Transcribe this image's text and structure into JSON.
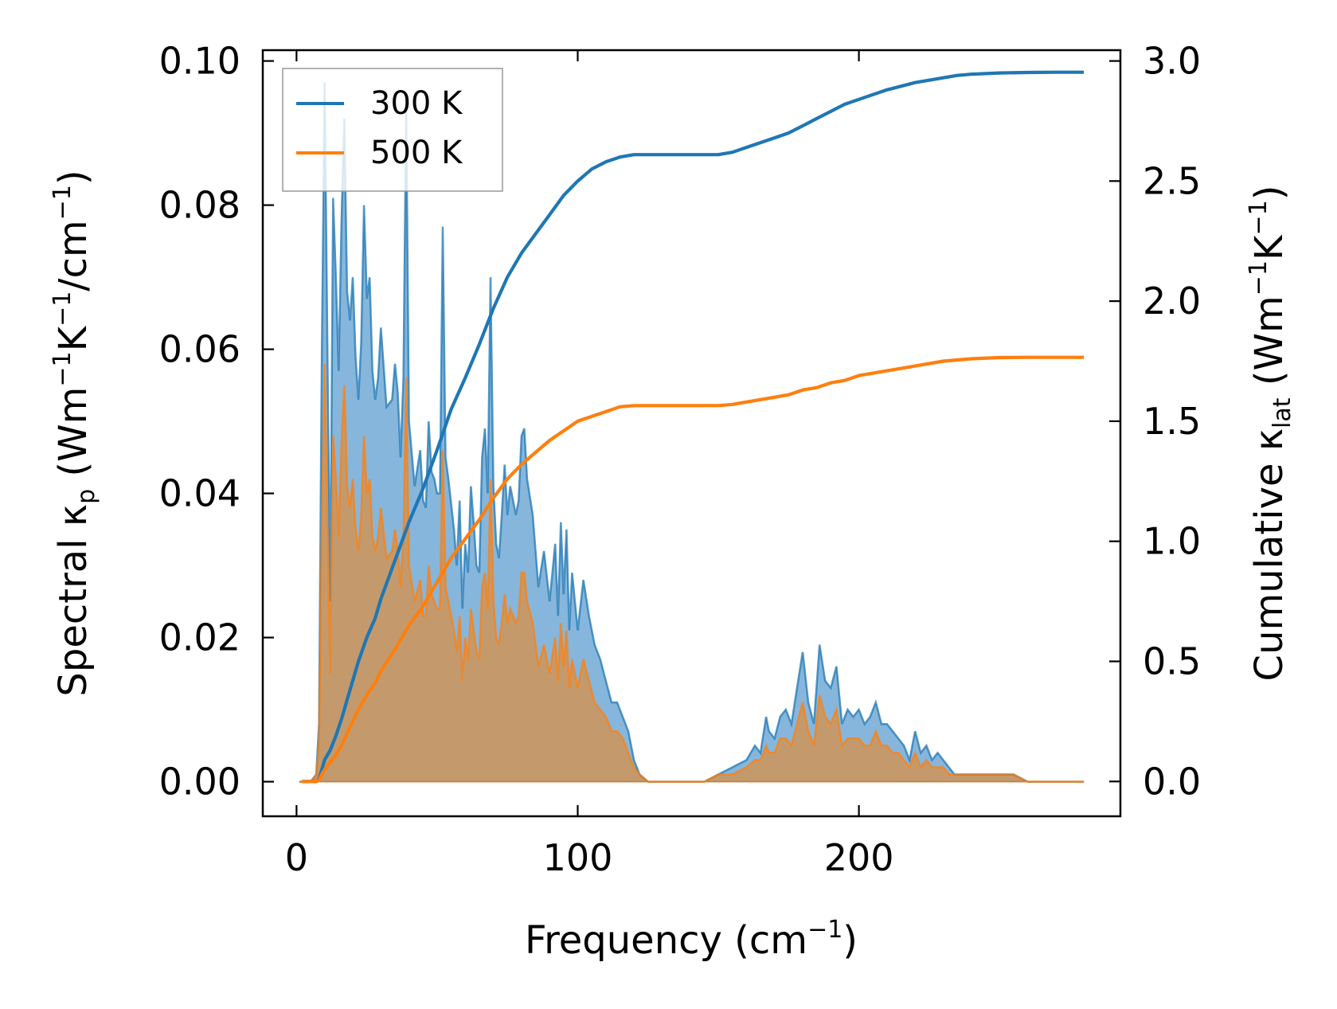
{
  "chart_data": {
    "type": "line",
    "title": "",
    "xlabel": "Frequency (cm⁻¹)",
    "xlabel_main": "Frequency (cm",
    "xlabel_sup": "−1",
    "xlabel_end": ")",
    "ylabel_left_parts": [
      "Spectral κ",
      "p",
      " (Wm",
      "−1",
      "K",
      "−1",
      "/cm",
      "−1",
      ")"
    ],
    "ylabel_right_parts": [
      "Cumulative κ",
      "lat",
      " (Wm",
      "−1",
      "K",
      "−1",
      ")"
    ],
    "xlim": [
      -12,
      293
    ],
    "ylim_left": [
      -0.0048,
      0.1015
    ],
    "ylim_right": [
      -0.145,
      3.045
    ],
    "xticks": [
      0,
      100,
      200
    ],
    "xtick_labels": [
      "0",
      "100",
      "200"
    ],
    "yticks_left": [
      0.0,
      0.02,
      0.04,
      0.06,
      0.08,
      0.1
    ],
    "ytick_labels_left": [
      "0.00",
      "0.02",
      "0.04",
      "0.06",
      "0.08",
      "0.10"
    ],
    "yticks_right": [
      0.0,
      0.5,
      1.0,
      1.5,
      2.0,
      2.5,
      3.0
    ],
    "ytick_labels_right": [
      "0.0",
      "0.5",
      "1.0",
      "1.5",
      "2.0",
      "2.5",
      "3.0"
    ],
    "legend_position": "top-left",
    "colors": {
      "300K": "#1f77b4",
      "500K": "#ff7f0e",
      "fill_300K": "#7fb2d9",
      "fill_500K": "#c49a6c"
    },
    "series": [
      {
        "name": "300 K",
        "axis": "left",
        "kind": "spectral",
        "x": [
          1,
          5,
          7,
          8,
          9,
          10,
          11,
          12,
          13,
          14,
          15,
          16,
          17,
          18,
          19,
          20,
          21,
          22,
          23,
          24,
          25,
          26,
          27,
          28,
          29,
          30,
          32,
          34,
          35,
          36,
          37,
          38,
          39,
          40,
          42,
          44,
          45,
          46,
          47,
          48,
          49,
          50,
          51,
          52,
          53,
          54,
          56,
          57,
          58,
          59,
          60,
          61,
          62,
          63,
          64,
          65,
          66,
          67,
          68,
          69,
          70,
          71,
          72,
          73,
          74,
          75,
          76,
          77,
          78,
          79,
          80,
          81,
          82,
          84,
          86,
          88,
          90,
          92,
          93,
          94,
          95,
          96,
          97,
          98,
          100,
          102,
          104,
          106,
          108,
          110,
          112,
          114,
          116,
          118,
          120,
          122,
          125,
          128,
          135,
          145,
          150,
          155,
          160,
          163,
          165,
          167,
          168,
          170,
          172,
          174,
          176,
          178,
          180,
          182,
          184,
          186,
          188,
          190,
          192,
          194,
          196,
          198,
          200,
          202,
          204,
          206,
          208,
          210,
          212,
          214,
          216,
          218,
          220,
          222,
          224,
          226,
          228,
          230,
          232,
          234,
          236,
          238,
          240,
          245,
          250,
          255,
          260,
          265,
          270,
          275,
          280
        ],
        "y": [
          0.0,
          0.0,
          0.001,
          0.008,
          0.06,
          0.097,
          0.06,
          0.025,
          0.081,
          0.07,
          0.057,
          0.078,
          0.092,
          0.068,
          0.064,
          0.07,
          0.059,
          0.053,
          0.061,
          0.08,
          0.067,
          0.07,
          0.057,
          0.053,
          0.056,
          0.063,
          0.052,
          0.053,
          0.058,
          0.054,
          0.045,
          0.056,
          0.094,
          0.05,
          0.041,
          0.046,
          0.039,
          0.038,
          0.05,
          0.043,
          0.042,
          0.04,
          0.04,
          0.077,
          0.045,
          0.042,
          0.035,
          0.03,
          0.039,
          0.024,
          0.033,
          0.029,
          0.041,
          0.036,
          0.03,
          0.029,
          0.045,
          0.049,
          0.04,
          0.07,
          0.041,
          0.033,
          0.031,
          0.037,
          0.044,
          0.037,
          0.041,
          0.039,
          0.037,
          0.039,
          0.048,
          0.049,
          0.042,
          0.037,
          0.027,
          0.032,
          0.025,
          0.033,
          0.023,
          0.036,
          0.026,
          0.035,
          0.021,
          0.029,
          0.021,
          0.028,
          0.023,
          0.019,
          0.017,
          0.014,
          0.011,
          0.011,
          0.009,
          0.007,
          0.003,
          0.001,
          0.0,
          0.0,
          0.0,
          0.0,
          0.001,
          0.002,
          0.003,
          0.005,
          0.004,
          0.009,
          0.007,
          0.006,
          0.009,
          0.01,
          0.008,
          0.013,
          0.018,
          0.011,
          0.008,
          0.019,
          0.014,
          0.013,
          0.016,
          0.008,
          0.01,
          0.009,
          0.01,
          0.008,
          0.009,
          0.011,
          0.008,
          0.008,
          0.007,
          0.006,
          0.005,
          0.003,
          0.007,
          0.004,
          0.005,
          0.003,
          0.004,
          0.003,
          0.002,
          0.001,
          0.001,
          0.001,
          0.001,
          0.001,
          0.001,
          0.001,
          0.0,
          0.0,
          0.0,
          0.0,
          0.0
        ]
      },
      {
        "name": "500 K",
        "axis": "left",
        "kind": "spectral",
        "x": [
          1,
          5,
          7,
          8,
          9,
          10,
          11,
          12,
          13,
          14,
          15,
          16,
          17,
          18,
          19,
          20,
          21,
          22,
          23,
          24,
          25,
          26,
          27,
          28,
          29,
          30,
          32,
          34,
          35,
          36,
          37,
          38,
          39,
          40,
          42,
          44,
          45,
          46,
          47,
          48,
          49,
          50,
          51,
          52,
          53,
          54,
          56,
          57,
          58,
          59,
          60,
          61,
          62,
          63,
          64,
          65,
          66,
          67,
          68,
          69,
          70,
          71,
          72,
          73,
          74,
          75,
          76,
          77,
          78,
          79,
          80,
          81,
          82,
          84,
          86,
          88,
          90,
          92,
          93,
          94,
          95,
          96,
          97,
          98,
          100,
          102,
          104,
          106,
          108,
          110,
          112,
          114,
          116,
          118,
          120,
          122,
          125,
          128,
          135,
          145,
          150,
          155,
          160,
          163,
          165,
          167,
          168,
          170,
          172,
          174,
          176,
          178,
          180,
          182,
          184,
          186,
          188,
          190,
          192,
          194,
          196,
          198,
          200,
          202,
          204,
          206,
          208,
          210,
          212,
          214,
          216,
          218,
          220,
          222,
          224,
          226,
          228,
          230,
          232,
          234,
          236,
          238,
          240,
          245,
          250,
          255,
          260,
          265,
          270,
          275,
          280
        ],
        "y": [
          0.0,
          0.0,
          0.001,
          0.005,
          0.036,
          0.058,
          0.036,
          0.015,
          0.048,
          0.042,
          0.034,
          0.047,
          0.055,
          0.041,
          0.038,
          0.042,
          0.035,
          0.032,
          0.037,
          0.048,
          0.04,
          0.042,
          0.034,
          0.032,
          0.034,
          0.038,
          0.031,
          0.032,
          0.035,
          0.032,
          0.027,
          0.034,
          0.056,
          0.03,
          0.025,
          0.028,
          0.023,
          0.023,
          0.03,
          0.026,
          0.025,
          0.024,
          0.024,
          0.046,
          0.027,
          0.025,
          0.021,
          0.018,
          0.023,
          0.014,
          0.02,
          0.017,
          0.024,
          0.021,
          0.018,
          0.017,
          0.027,
          0.029,
          0.024,
          0.042,
          0.025,
          0.02,
          0.019,
          0.022,
          0.026,
          0.022,
          0.024,
          0.023,
          0.022,
          0.023,
          0.029,
          0.029,
          0.025,
          0.022,
          0.016,
          0.019,
          0.015,
          0.02,
          0.014,
          0.022,
          0.016,
          0.021,
          0.013,
          0.017,
          0.013,
          0.017,
          0.014,
          0.011,
          0.01,
          0.009,
          0.007,
          0.007,
          0.006,
          0.004,
          0.002,
          0.001,
          0.0,
          0.0,
          0.0,
          0.0,
          0.001,
          0.001,
          0.002,
          0.003,
          0.003,
          0.005,
          0.004,
          0.004,
          0.006,
          0.006,
          0.005,
          0.008,
          0.011,
          0.007,
          0.005,
          0.012,
          0.009,
          0.008,
          0.01,
          0.005,
          0.006,
          0.006,
          0.006,
          0.005,
          0.005,
          0.007,
          0.005,
          0.005,
          0.004,
          0.004,
          0.003,
          0.002,
          0.004,
          0.002,
          0.003,
          0.002,
          0.002,
          0.002,
          0.001,
          0.001,
          0.001,
          0.001,
          0.001,
          0.001,
          0.001,
          0.001,
          0.0,
          0.0,
          0.0,
          0.0,
          0.0
        ]
      },
      {
        "name": "300 K",
        "axis": "right",
        "kind": "cumulative",
        "x": [
          2,
          5,
          7,
          8,
          9,
          10,
          12,
          14,
          16,
          18,
          20,
          22,
          25,
          28,
          30,
          35,
          40,
          45,
          50,
          55,
          60,
          65,
          70,
          75,
          80,
          85,
          90,
          95,
          100,
          105,
          110,
          115,
          120,
          125,
          130,
          140,
          150,
          155,
          160,
          165,
          170,
          175,
          180,
          185,
          190,
          195,
          200,
          210,
          220,
          230,
          235,
          240,
          250,
          260,
          270,
          280
        ],
        "y": [
          0.0,
          0.0,
          0.0,
          0.01,
          0.05,
          0.09,
          0.13,
          0.19,
          0.26,
          0.34,
          0.42,
          0.5,
          0.6,
          0.68,
          0.76,
          0.92,
          1.08,
          1.22,
          1.38,
          1.55,
          1.68,
          1.82,
          1.97,
          2.1,
          2.2,
          2.28,
          2.36,
          2.44,
          2.5,
          2.55,
          2.58,
          2.6,
          2.61,
          2.61,
          2.61,
          2.61,
          2.61,
          2.62,
          2.64,
          2.66,
          2.68,
          2.7,
          2.73,
          2.76,
          2.79,
          2.82,
          2.84,
          2.88,
          2.91,
          2.93,
          2.94,
          2.945,
          2.95,
          2.952,
          2.953,
          2.953
        ]
      },
      {
        "name": "500 K",
        "axis": "right",
        "kind": "cumulative",
        "x": [
          2,
          5,
          7,
          8,
          9,
          10,
          12,
          14,
          16,
          18,
          20,
          22,
          25,
          28,
          30,
          35,
          40,
          45,
          50,
          55,
          60,
          65,
          70,
          75,
          80,
          85,
          90,
          95,
          100,
          105,
          110,
          115,
          120,
          125,
          130,
          140,
          150,
          155,
          160,
          165,
          170,
          175,
          180,
          185,
          190,
          195,
          200,
          210,
          220,
          230,
          235,
          240,
          250,
          260,
          270,
          280
        ],
        "y": [
          0.0,
          0.0,
          0.0,
          0.005,
          0.03,
          0.05,
          0.08,
          0.11,
          0.15,
          0.2,
          0.25,
          0.3,
          0.36,
          0.41,
          0.46,
          0.55,
          0.65,
          0.73,
          0.83,
          0.93,
          1.01,
          1.09,
          1.18,
          1.26,
          1.32,
          1.37,
          1.42,
          1.46,
          1.5,
          1.52,
          1.54,
          1.56,
          1.565,
          1.565,
          1.565,
          1.565,
          1.565,
          1.57,
          1.58,
          1.59,
          1.6,
          1.61,
          1.63,
          1.64,
          1.66,
          1.67,
          1.69,
          1.71,
          1.73,
          1.75,
          1.755,
          1.76,
          1.765,
          1.766,
          1.766,
          1.766
        ]
      }
    ],
    "legend": [
      {
        "label": "300 K",
        "color": "#1f77b4"
      },
      {
        "label": "500 K",
        "color": "#ff7f0e"
      }
    ]
  }
}
